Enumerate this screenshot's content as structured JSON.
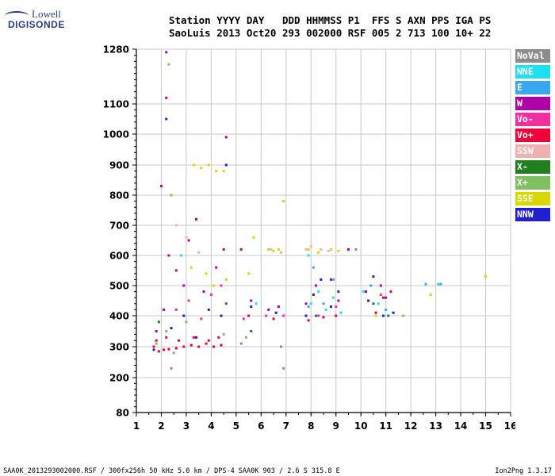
{
  "logo": {
    "line1": "Lowell",
    "line2": "DIGISONDE"
  },
  "header": {
    "row1": "Station YYYY DAY   DDD HHMMSS P1  FFS S AXN PPS IGA PS",
    "row2": "SaoLuis 2013 Oct20 293 002000 RSF 005 2 713 100 10+ 22"
  },
  "legend": [
    {
      "label": "NoVal",
      "color": "#8c8c8c"
    },
    {
      "label": "NNE",
      "color": "#1ee0f0"
    },
    {
      "label": "E",
      "color": "#3aa8f0"
    },
    {
      "label": "W",
      "color": "#b000a8"
    },
    {
      "label": "Vo-",
      "color": "#f030a0"
    },
    {
      "label": "Vo+",
      "color": "#f00038"
    },
    {
      "label": "SSW",
      "color": "#f0b0b0"
    },
    {
      "label": "X-",
      "color": "#208020"
    },
    {
      "label": "X+",
      "color": "#80c060"
    },
    {
      "label": "SSE",
      "color": "#d8d800"
    },
    {
      "label": "NNW",
      "color": "#2020d0"
    }
  ],
  "footer": {
    "left": "SAA0K_2013293002000.RSF / 300fx256h 50 kHz 5.0 km / DPS-4 SAA0K 903 / 2.6 S 315.8 E",
    "right": "Ion2Png 1.3.17"
  },
  "chart_data": {
    "type": "scatter",
    "title": "",
    "xlabel": "",
    "ylabel": "",
    "xlim": [
      1,
      16
    ],
    "ylim": [
      80,
      1280
    ],
    "xticks": [
      1,
      2,
      3,
      4,
      5,
      6,
      7,
      8,
      9,
      10,
      11,
      12,
      13,
      14,
      15,
      16
    ],
    "yticks": [
      80,
      200,
      300,
      400,
      500,
      600,
      700,
      800,
      900,
      1000,
      1100,
      1280
    ],
    "y_scale": "nonlinear",
    "grid": true,
    "legend_position": "right",
    "series": [
      {
        "name": "Vo+",
        "color": "#f00038",
        "points": [
          [
            1.7,
            300
          ],
          [
            1.9,
            285
          ],
          [
            2.1,
            290
          ],
          [
            2.3,
            292
          ],
          [
            2.6,
            295
          ],
          [
            2.9,
            300
          ],
          [
            3.2,
            305
          ],
          [
            3.5,
            300
          ],
          [
            3.8,
            310
          ],
          [
            4.1,
            300
          ],
          [
            4.4,
            305
          ],
          [
            1.8,
            320
          ],
          [
            2.2,
            330
          ],
          [
            2.7,
            320
          ],
          [
            3.3,
            330
          ],
          [
            3.9,
            320
          ],
          [
            4.3,
            330
          ],
          [
            5.5,
            400
          ],
          [
            6.5,
            390
          ],
          [
            7.9,
            385
          ],
          [
            8.5,
            395
          ],
          [
            9.0,
            400
          ],
          [
            10.6,
            410
          ],
          [
            10.9,
            460
          ],
          [
            11.2,
            480
          ]
        ]
      },
      {
        "name": "W",
        "color": "#b000a8",
        "points": [
          [
            1.8,
            350
          ],
          [
            2.1,
            420
          ],
          [
            2.2,
            1270
          ],
          [
            2.2,
            1120
          ],
          [
            2.3,
            600
          ],
          [
            2.6,
            550
          ],
          [
            2.9,
            500
          ],
          [
            3.1,
            650
          ],
          [
            3.4,
            720
          ],
          [
            3.7,
            480
          ],
          [
            4.2,
            560
          ],
          [
            4.5,
            620
          ],
          [
            4.6,
            990
          ],
          [
            5.2,
            620
          ],
          [
            5.6,
            450
          ],
          [
            6.3,
            420
          ],
          [
            6.7,
            430
          ],
          [
            7.8,
            440
          ],
          [
            8.2,
            500
          ],
          [
            8.8,
            520
          ],
          [
            9.1,
            450
          ],
          [
            10.2,
            480
          ],
          [
            10.8,
            500
          ],
          [
            11.0,
            460
          ],
          [
            9.5,
            620
          ],
          [
            2.0,
            830
          ]
        ]
      },
      {
        "name": "NNW",
        "color": "#2020d0",
        "points": [
          [
            1.7,
            290
          ],
          [
            2.4,
            360
          ],
          [
            2.9,
            400
          ],
          [
            3.4,
            330
          ],
          [
            3.9,
            420
          ],
          [
            4.4,
            400
          ],
          [
            4.6,
            900
          ],
          [
            5.6,
            430
          ],
          [
            6.6,
            410
          ],
          [
            7.8,
            400
          ],
          [
            8.1,
            470
          ],
          [
            8.4,
            520
          ],
          [
            8.8,
            430
          ],
          [
            9.1,
            480
          ],
          [
            10.3,
            450
          ],
          [
            10.5,
            530
          ],
          [
            10.9,
            400
          ],
          [
            11.3,
            410
          ],
          [
            2.2,
            1050
          ]
        ]
      },
      {
        "name": "NNE",
        "color": "#1ee0f0",
        "points": [
          [
            8.0,
            440
          ],
          [
            8.3,
            480
          ],
          [
            8.6,
            420
          ],
          [
            8.9,
            460
          ],
          [
            9.2,
            410
          ],
          [
            7.9,
            600
          ],
          [
            10.7,
            440
          ],
          [
            10.1,
            480
          ],
          [
            5.8,
            440
          ],
          [
            13.1,
            505
          ],
          [
            2.8,
            600
          ]
        ]
      },
      {
        "name": "E",
        "color": "#3aa8f0",
        "points": [
          [
            8.1,
            560
          ],
          [
            8.5,
            440
          ],
          [
            8.9,
            520
          ],
          [
            10.4,
            500
          ],
          [
            11.0,
            420
          ],
          [
            12.6,
            505
          ],
          [
            13.2,
            505
          ],
          [
            7.9,
            430
          ]
        ]
      },
      {
        "name": "SSE",
        "color": "#d8d800",
        "points": [
          [
            3.3,
            900
          ],
          [
            3.6,
            890
          ],
          [
            3.9,
            900
          ],
          [
            4.2,
            880
          ],
          [
            4.5,
            880
          ],
          [
            3.2,
            560
          ],
          [
            3.8,
            540
          ],
          [
            4.1,
            500
          ],
          [
            4.6,
            520
          ],
          [
            5.5,
            540
          ],
          [
            5.7,
            660
          ],
          [
            6.3,
            620
          ],
          [
            6.5,
            615
          ],
          [
            6.7,
            620
          ],
          [
            7.9,
            620
          ],
          [
            8.3,
            610
          ],
          [
            8.8,
            620
          ],
          [
            9.1,
            615
          ],
          [
            15.0,
            530
          ],
          [
            12.8,
            470
          ],
          [
            10.6,
            400
          ],
          [
            6.9,
            780
          ]
        ]
      },
      {
        "name": "SSW",
        "color": "#f0b0b0",
        "points": [
          [
            7.8,
            620
          ],
          [
            8.0,
            630
          ],
          [
            8.4,
            620
          ],
          [
            8.7,
            615
          ],
          [
            6.4,
            620
          ],
          [
            6.8,
            610
          ],
          [
            2.6,
            700
          ],
          [
            3.0,
            660
          ],
          [
            3.5,
            610
          ]
        ]
      },
      {
        "name": "X+",
        "color": "#80c060",
        "points": [
          [
            1.8,
            310
          ],
          [
            2.2,
            350
          ],
          [
            2.5,
            280
          ],
          [
            3.0,
            380
          ],
          [
            4.5,
            340
          ],
          [
            5.4,
            330
          ],
          [
            11.7,
            400
          ],
          [
            2.4,
            800
          ],
          [
            2.3,
            1230
          ]
        ]
      },
      {
        "name": "X-",
        "color": "#208020",
        "points": [
          [
            4.6,
            440
          ],
          [
            5.6,
            350
          ],
          [
            8.2,
            400
          ],
          [
            10.5,
            440
          ],
          [
            11.1,
            400
          ],
          [
            1.9,
            380
          ]
        ]
      },
      {
        "name": "Vo-",
        "color": "#f030a0",
        "points": [
          [
            2.6,
            420
          ],
          [
            3.1,
            450
          ],
          [
            3.6,
            390
          ],
          [
            4.0,
            470
          ],
          [
            4.4,
            500
          ],
          [
            5.3,
            390
          ],
          [
            6.2,
            400
          ],
          [
            6.9,
            400
          ],
          [
            8.3,
            400
          ],
          [
            9.0,
            430
          ],
          [
            10.8,
            470
          ]
        ]
      },
      {
        "name": "NoVal",
        "color": "#8c8c8c",
        "points": [
          [
            6.8,
            300
          ],
          [
            6.9,
            230
          ],
          [
            5.2,
            310
          ],
          [
            9.8,
            620
          ],
          [
            2.4,
            230
          ]
        ]
      }
    ]
  }
}
